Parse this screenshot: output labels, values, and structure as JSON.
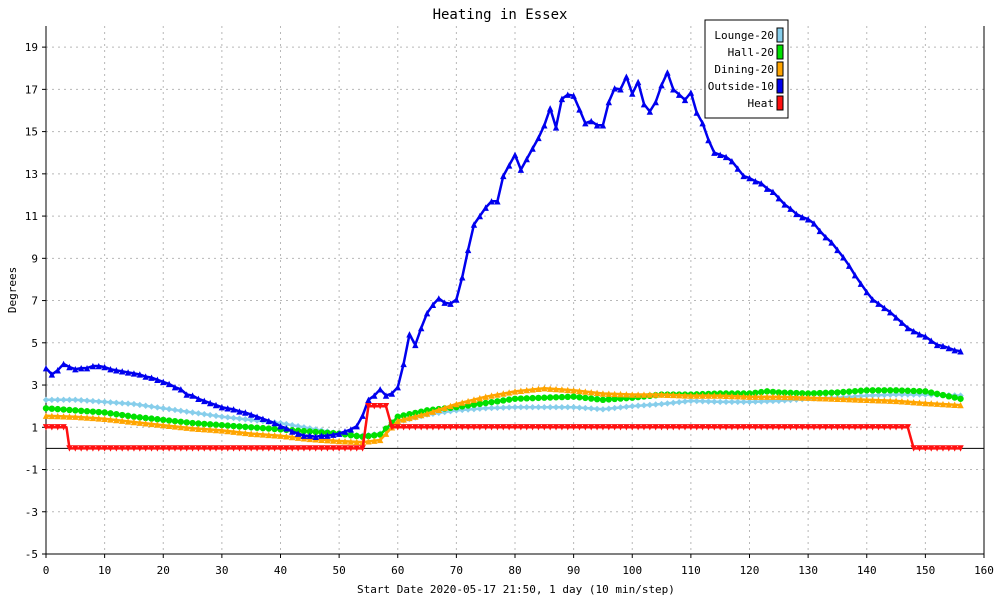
{
  "chart_data": {
    "type": "line",
    "title": "Heating in Essex",
    "xlabel": "Start Date 2020-05-17 21:50, 1 day (10 min/step)",
    "ylabel": "Degrees",
    "xlim": [
      0,
      160
    ],
    "ylim": [
      -5,
      20
    ],
    "xticks": [
      0,
      10,
      20,
      30,
      40,
      50,
      60,
      70,
      80,
      90,
      100,
      110,
      120,
      130,
      140,
      150,
      160
    ],
    "yticks": [
      -5,
      -3,
      -1,
      1,
      3,
      5,
      7,
      9,
      11,
      13,
      15,
      17,
      19
    ],
    "zero_line": 0,
    "grid": true,
    "legend_position": "top-right",
    "series": [
      {
        "name": "Lounge-20",
        "color": "#87ceeb",
        "marker": "diamond",
        "points": [
          [
            0,
            2.3
          ],
          [
            5,
            2.3
          ],
          [
            10,
            2.2
          ],
          [
            15,
            2.1
          ],
          [
            20,
            1.9
          ],
          [
            25,
            1.7
          ],
          [
            30,
            1.5
          ],
          [
            35,
            1.35
          ],
          [
            40,
            1.2
          ],
          [
            45,
            0.95
          ],
          [
            50,
            0.7
          ],
          [
            54,
            0.6
          ],
          [
            57,
            0.7
          ],
          [
            60,
            1.25
          ],
          [
            65,
            1.6
          ],
          [
            70,
            1.8
          ],
          [
            75,
            1.9
          ],
          [
            80,
            1.95
          ],
          [
            85,
            1.95
          ],
          [
            90,
            1.95
          ],
          [
            95,
            1.85
          ],
          [
            100,
            2.0
          ],
          [
            105,
            2.1
          ],
          [
            110,
            2.25
          ],
          [
            115,
            2.2
          ],
          [
            120,
            2.2
          ],
          [
            125,
            2.25
          ],
          [
            130,
            2.35
          ],
          [
            135,
            2.4
          ],
          [
            140,
            2.5
          ],
          [
            145,
            2.55
          ],
          [
            150,
            2.55
          ],
          [
            156,
            2.5
          ]
        ]
      },
      {
        "name": "Hall-20",
        "color": "#00e000",
        "marker": "circle",
        "points": [
          [
            0,
            1.9
          ],
          [
            5,
            1.8
          ],
          [
            10,
            1.7
          ],
          [
            15,
            1.5
          ],
          [
            20,
            1.35
          ],
          [
            25,
            1.2
          ],
          [
            30,
            1.1
          ],
          [
            35,
            1.0
          ],
          [
            40,
            0.9
          ],
          [
            45,
            0.8
          ],
          [
            50,
            0.7
          ],
          [
            54,
            0.55
          ],
          [
            57,
            0.65
          ],
          [
            60,
            1.5
          ],
          [
            65,
            1.8
          ],
          [
            70,
            1.95
          ],
          [
            75,
            2.15
          ],
          [
            80,
            2.35
          ],
          [
            85,
            2.4
          ],
          [
            90,
            2.45
          ],
          [
            95,
            2.3
          ],
          [
            100,
            2.4
          ],
          [
            105,
            2.55
          ],
          [
            110,
            2.55
          ],
          [
            115,
            2.6
          ],
          [
            120,
            2.6
          ],
          [
            123,
            2.7
          ],
          [
            125,
            2.65
          ],
          [
            130,
            2.6
          ],
          [
            135,
            2.65
          ],
          [
            140,
            2.75
          ],
          [
            145,
            2.75
          ],
          [
            150,
            2.7
          ],
          [
            156,
            2.35
          ]
        ]
      },
      {
        "name": "Dining-20",
        "color": "#ffa500",
        "marker": "triangle-up",
        "points": [
          [
            0,
            1.55
          ],
          [
            5,
            1.5
          ],
          [
            10,
            1.4
          ],
          [
            15,
            1.25
          ],
          [
            20,
            1.1
          ],
          [
            25,
            0.95
          ],
          [
            30,
            0.85
          ],
          [
            35,
            0.7
          ],
          [
            40,
            0.6
          ],
          [
            45,
            0.45
          ],
          [
            50,
            0.35
          ],
          [
            54,
            0.3
          ],
          [
            57,
            0.4
          ],
          [
            60,
            1.3
          ],
          [
            65,
            1.65
          ],
          [
            70,
            2.1
          ],
          [
            75,
            2.45
          ],
          [
            80,
            2.7
          ],
          [
            85,
            2.85
          ],
          [
            90,
            2.75
          ],
          [
            95,
            2.6
          ],
          [
            100,
            2.55
          ],
          [
            105,
            2.55
          ],
          [
            110,
            2.5
          ],
          [
            115,
            2.5
          ],
          [
            120,
            2.45
          ],
          [
            125,
            2.45
          ],
          [
            130,
            2.4
          ],
          [
            135,
            2.35
          ],
          [
            140,
            2.3
          ],
          [
            145,
            2.25
          ],
          [
            150,
            2.15
          ],
          [
            156,
            2.05
          ]
        ]
      },
      {
        "name": "Outside-10",
        "color": "#0000ee",
        "marker": "triangle-up",
        "points": [
          [
            0,
            3.8
          ],
          [
            1,
            3.5
          ],
          [
            2,
            3.7
          ],
          [
            3,
            4.0
          ],
          [
            4,
            3.85
          ],
          [
            5,
            3.75
          ],
          [
            6,
            3.8
          ],
          [
            7,
            3.8
          ],
          [
            8,
            3.9
          ],
          [
            9,
            3.9
          ],
          [
            10,
            3.85
          ],
          [
            11,
            3.75
          ],
          [
            12,
            3.7
          ],
          [
            13,
            3.65
          ],
          [
            14,
            3.6
          ],
          [
            15,
            3.55
          ],
          [
            16,
            3.5
          ],
          [
            17,
            3.4
          ],
          [
            18,
            3.35
          ],
          [
            19,
            3.25
          ],
          [
            20,
            3.15
          ],
          [
            21,
            3.05
          ],
          [
            22,
            2.9
          ],
          [
            23,
            2.8
          ],
          [
            24,
            2.55
          ],
          [
            25,
            2.5
          ],
          [
            26,
            2.35
          ],
          [
            27,
            2.25
          ],
          [
            28,
            2.15
          ],
          [
            29,
            2.05
          ],
          [
            30,
            1.95
          ],
          [
            31,
            1.9
          ],
          [
            32,
            1.85
          ],
          [
            33,
            1.75
          ],
          [
            34,
            1.7
          ],
          [
            35,
            1.6
          ],
          [
            36,
            1.5
          ],
          [
            37,
            1.4
          ],
          [
            38,
            1.3
          ],
          [
            39,
            1.2
          ],
          [
            40,
            1.05
          ],
          [
            41,
            0.95
          ],
          [
            42,
            0.8
          ],
          [
            43,
            0.7
          ],
          [
            44,
            0.6
          ],
          [
            45,
            0.6
          ],
          [
            46,
            0.55
          ],
          [
            47,
            0.6
          ],
          [
            48,
            0.6
          ],
          [
            49,
            0.65
          ],
          [
            50,
            0.7
          ],
          [
            51,
            0.8
          ],
          [
            52,
            0.9
          ],
          [
            53,
            1.05
          ],
          [
            54,
            1.55
          ],
          [
            55,
            2.3
          ],
          [
            56,
            2.5
          ],
          [
            57,
            2.8
          ],
          [
            58,
            2.5
          ],
          [
            59,
            2.6
          ],
          [
            60,
            2.9
          ],
          [
            61,
            4.0
          ],
          [
            62,
            5.4
          ],
          [
            63,
            4.9
          ],
          [
            64,
            5.7
          ],
          [
            65,
            6.4
          ],
          [
            66,
            6.8
          ],
          [
            67,
            7.1
          ],
          [
            68,
            6.9
          ],
          [
            69,
            6.85
          ],
          [
            70,
            7.05
          ],
          [
            71,
            8.1
          ],
          [
            72,
            9.4
          ],
          [
            73,
            10.6
          ],
          [
            74,
            11.0
          ],
          [
            75,
            11.4
          ],
          [
            76,
            11.7
          ],
          [
            77,
            11.7
          ],
          [
            78,
            12.9
          ],
          [
            79,
            13.4
          ],
          [
            80,
            13.9
          ],
          [
            81,
            13.2
          ],
          [
            82,
            13.7
          ],
          [
            83,
            14.2
          ],
          [
            84,
            14.7
          ],
          [
            85,
            15.3
          ],
          [
            86,
            16.1
          ],
          [
            87,
            15.2
          ],
          [
            88,
            16.55
          ],
          [
            89,
            16.75
          ],
          [
            90,
            16.7
          ],
          [
            91,
            16.05
          ],
          [
            92,
            15.4
          ],
          [
            93,
            15.5
          ],
          [
            94,
            15.3
          ],
          [
            95,
            15.3
          ],
          [
            96,
            16.4
          ],
          [
            97,
            17.05
          ],
          [
            98,
            17.0
          ],
          [
            99,
            17.6
          ],
          [
            100,
            16.8
          ],
          [
            101,
            17.35
          ],
          [
            102,
            16.3
          ],
          [
            103,
            15.95
          ],
          [
            104,
            16.4
          ],
          [
            105,
            17.2
          ],
          [
            106,
            17.8
          ],
          [
            107,
            17.0
          ],
          [
            108,
            16.75
          ],
          [
            109,
            16.5
          ],
          [
            110,
            16.85
          ],
          [
            111,
            15.9
          ],
          [
            112,
            15.4
          ],
          [
            113,
            14.6
          ],
          [
            114,
            14.0
          ],
          [
            115,
            13.9
          ],
          [
            116,
            13.8
          ],
          [
            117,
            13.6
          ],
          [
            118,
            13.25
          ],
          [
            119,
            12.9
          ],
          [
            120,
            12.8
          ],
          [
            121,
            12.65
          ],
          [
            122,
            12.55
          ],
          [
            123,
            12.3
          ],
          [
            124,
            12.15
          ],
          [
            125,
            11.85
          ],
          [
            126,
            11.55
          ],
          [
            127,
            11.35
          ],
          [
            128,
            11.1
          ],
          [
            129,
            10.95
          ],
          [
            130,
            10.85
          ],
          [
            131,
            10.65
          ],
          [
            132,
            10.3
          ],
          [
            133,
            10.0
          ],
          [
            134,
            9.75
          ],
          [
            135,
            9.4
          ],
          [
            136,
            9.05
          ],
          [
            137,
            8.65
          ],
          [
            138,
            8.2
          ],
          [
            139,
            7.8
          ],
          [
            140,
            7.4
          ],
          [
            141,
            7.05
          ],
          [
            142,
            6.85
          ],
          [
            143,
            6.65
          ],
          [
            144,
            6.45
          ],
          [
            145,
            6.2
          ],
          [
            146,
            5.95
          ],
          [
            147,
            5.7
          ],
          [
            148,
            5.55
          ],
          [
            149,
            5.4
          ],
          [
            150,
            5.3
          ],
          [
            151,
            5.1
          ],
          [
            152,
            4.9
          ],
          [
            153,
            4.85
          ],
          [
            154,
            4.75
          ],
          [
            155,
            4.65
          ],
          [
            156,
            4.6
          ]
        ]
      },
      {
        "name": "Heat",
        "color": "#ff1010",
        "marker": "triangle-down",
        "points": [
          [
            0,
            1
          ],
          [
            3.5,
            1
          ],
          [
            4,
            0
          ],
          [
            54,
            0
          ],
          [
            55,
            2
          ],
          [
            58,
            2
          ],
          [
            59,
            1
          ],
          [
            147,
            1
          ],
          [
            148,
            0
          ],
          [
            156,
            0
          ]
        ]
      }
    ]
  }
}
